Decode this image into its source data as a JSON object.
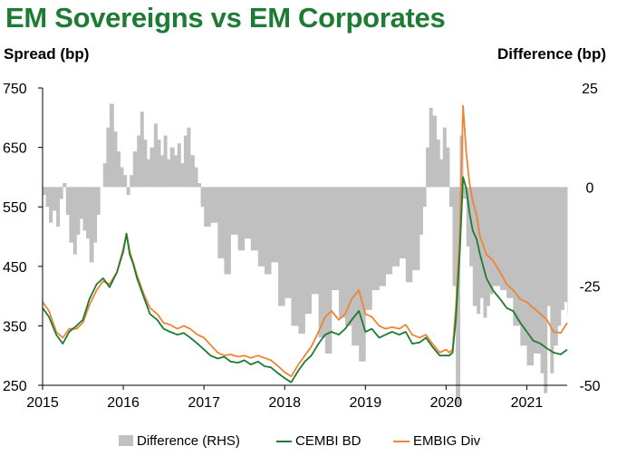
{
  "title": "EM Sovereigns vs EM Corporates",
  "left_axis_label": "Spread (bp)",
  "right_axis_label": "Difference (bp)",
  "chart_data": {
    "type": "line",
    "title": "EM Sovereigns vs EM Corporates",
    "xlabel": "",
    "ylabel": "Spread (bp)",
    "y2label": "Difference (bp)",
    "xlim": [
      2015.0,
      2021.5
    ],
    "ylim": [
      250,
      750
    ],
    "y2lim": [
      -50,
      25
    ],
    "x_ticks": [
      "2015",
      "2016",
      "2017",
      "2018",
      "2019",
      "2020",
      "2021"
    ],
    "y_ticks": [
      "250",
      "350",
      "450",
      "550",
      "650",
      "750"
    ],
    "y2_ticks": [
      "-50",
      "-25",
      "0",
      "25"
    ],
    "grid": false,
    "legend_position": "bottom",
    "colors": {
      "difference": "#c0c0c0",
      "cembi": "#1f7a33",
      "embig": "#ee8434",
      "title": "#1e7b34"
    },
    "series": [
      {
        "name": "Difference (RHS)",
        "axis": "right",
        "style": "area",
        "x": [
          2015.0,
          2015.04,
          2015.08,
          2015.12,
          2015.17,
          2015.21,
          2015.25,
          2015.29,
          2015.33,
          2015.38,
          2015.42,
          2015.46,
          2015.5,
          2015.54,
          2015.58,
          2015.63,
          2015.67,
          2015.71,
          2015.75,
          2015.79,
          2015.83,
          2015.88,
          2015.92,
          2015.96,
          2016.0,
          2016.04,
          2016.08,
          2016.12,
          2016.17,
          2016.21,
          2016.25,
          2016.29,
          2016.33,
          2016.38,
          2016.42,
          2016.46,
          2016.5,
          2016.54,
          2016.58,
          2016.63,
          2016.67,
          2016.71,
          2016.75,
          2016.79,
          2016.83,
          2016.88,
          2016.92,
          2016.96,
          2017.0,
          2017.08,
          2017.17,
          2017.25,
          2017.33,
          2017.42,
          2017.5,
          2017.58,
          2017.67,
          2017.75,
          2017.83,
          2017.92,
          2018.0,
          2018.08,
          2018.17,
          2018.25,
          2018.33,
          2018.42,
          2018.5,
          2018.58,
          2018.67,
          2018.75,
          2018.83,
          2018.92,
          2019.0,
          2019.08,
          2019.17,
          2019.25,
          2019.33,
          2019.42,
          2019.5,
          2019.58,
          2019.67,
          2019.71,
          2019.75,
          2019.79,
          2019.83,
          2019.88,
          2019.92,
          2019.96,
          2020.0,
          2020.04,
          2020.08,
          2020.12,
          2020.17,
          2020.21,
          2020.25,
          2020.29,
          2020.33,
          2020.38,
          2020.42,
          2020.46,
          2020.5,
          2020.54,
          2020.58,
          2020.67,
          2020.75,
          2020.83,
          2020.92,
          2021.0,
          2021.08,
          2021.17,
          2021.21,
          2021.25,
          2021.29,
          2021.33,
          2021.38,
          2021.42,
          2021.46,
          2021.5
        ],
        "values": [
          -2,
          -5,
          -9,
          -6,
          -10,
          -3,
          1,
          -7,
          -14,
          -17,
          -12,
          -8,
          -11,
          -13,
          -19,
          -14,
          -7,
          0,
          6,
          15,
          21,
          14,
          9,
          5,
          3,
          -2,
          3,
          9,
          13,
          19,
          12,
          7,
          10,
          16,
          12,
          8,
          13,
          7,
          10,
          8,
          11,
          6,
          13,
          15,
          8,
          5,
          1,
          -5,
          -10,
          -9,
          -18,
          -22,
          -12,
          -16,
          -13,
          -16,
          -20,
          -22,
          -19,
          -30,
          -28,
          -35,
          -37,
          -32,
          -27,
          -38,
          -42,
          -26,
          -33,
          -35,
          -40,
          -44,
          -31,
          -26,
          -25,
          -22,
          -20,
          -18,
          -24,
          -21,
          -12,
          -5,
          10,
          20,
          18,
          12,
          7,
          15,
          10,
          -5,
          -25,
          -55,
          13,
          -3,
          -15,
          -20,
          -30,
          -32,
          -28,
          -33,
          -30,
          -27,
          -25,
          -26,
          -28,
          -35,
          -40,
          -45,
          -42,
          -47,
          -52,
          -30,
          -47,
          -40,
          -35,
          -31,
          -29,
          -32
        ]
      },
      {
        "name": "CEMBI BD",
        "axis": "left",
        "style": "line",
        "x": [
          2015.0,
          2015.08,
          2015.17,
          2015.25,
          2015.33,
          2015.42,
          2015.5,
          2015.58,
          2015.67,
          2015.75,
          2015.83,
          2015.92,
          2016.0,
          2016.04,
          2016.08,
          2016.12,
          2016.17,
          2016.25,
          2016.33,
          2016.42,
          2016.5,
          2016.58,
          2016.67,
          2016.75,
          2016.83,
          2016.92,
          2017.0,
          2017.08,
          2017.17,
          2017.25,
          2017.33,
          2017.42,
          2017.5,
          2017.58,
          2017.67,
          2017.75,
          2017.83,
          2017.92,
          2018.0,
          2018.08,
          2018.17,
          2018.25,
          2018.33,
          2018.42,
          2018.5,
          2018.58,
          2018.67,
          2018.75,
          2018.83,
          2018.92,
          2019.0,
          2019.08,
          2019.17,
          2019.25,
          2019.33,
          2019.42,
          2019.5,
          2019.58,
          2019.67,
          2019.75,
          2019.83,
          2019.92,
          2020.0,
          2020.04,
          2020.08,
          2020.12,
          2020.17,
          2020.21,
          2020.25,
          2020.29,
          2020.33,
          2020.38,
          2020.42,
          2020.5,
          2020.58,
          2020.67,
          2020.75,
          2020.83,
          2020.92,
          2021.0,
          2021.08,
          2021.17,
          2021.25,
          2021.33,
          2021.42,
          2021.5
        ],
        "values": [
          380,
          365,
          335,
          320,
          340,
          350,
          360,
          395,
          420,
          430,
          415,
          440,
          475,
          505,
          470,
          455,
          430,
          400,
          370,
          360,
          345,
          340,
          335,
          338,
          330,
          320,
          310,
          300,
          295,
          298,
          290,
          288,
          292,
          285,
          290,
          282,
          280,
          270,
          262,
          255,
          275,
          290,
          300,
          320,
          335,
          340,
          335,
          345,
          360,
          375,
          340,
          345,
          330,
          335,
          340,
          335,
          340,
          320,
          322,
          330,
          315,
          300,
          300,
          300,
          305,
          360,
          475,
          600,
          580,
          540,
          510,
          495,
          470,
          430,
          410,
          395,
          380,
          375,
          355,
          340,
          325,
          320,
          312,
          305,
          302,
          310
        ]
      },
      {
        "name": "EMBIG Div",
        "axis": "left",
        "style": "line",
        "x": [
          2015.0,
          2015.08,
          2015.17,
          2015.25,
          2015.33,
          2015.42,
          2015.5,
          2015.58,
          2015.67,
          2015.75,
          2015.83,
          2015.92,
          2016.0,
          2016.04,
          2016.08,
          2016.12,
          2016.17,
          2016.25,
          2016.33,
          2016.42,
          2016.5,
          2016.58,
          2016.67,
          2016.75,
          2016.83,
          2016.92,
          2017.0,
          2017.08,
          2017.17,
          2017.25,
          2017.33,
          2017.42,
          2017.5,
          2017.58,
          2017.67,
          2017.75,
          2017.83,
          2017.92,
          2018.0,
          2018.08,
          2018.17,
          2018.25,
          2018.33,
          2018.42,
          2018.5,
          2018.58,
          2018.67,
          2018.75,
          2018.83,
          2018.92,
          2019.0,
          2019.08,
          2019.17,
          2019.25,
          2019.33,
          2019.42,
          2019.5,
          2019.58,
          2019.67,
          2019.75,
          2019.83,
          2019.92,
          2020.0,
          2020.04,
          2020.08,
          2020.12,
          2020.17,
          2020.21,
          2020.25,
          2020.29,
          2020.33,
          2020.38,
          2020.42,
          2020.5,
          2020.58,
          2020.67,
          2020.75,
          2020.83,
          2020.92,
          2021.0,
          2021.08,
          2021.17,
          2021.25,
          2021.33,
          2021.42,
          2021.5
        ],
        "values": [
          390,
          375,
          340,
          330,
          345,
          345,
          355,
          385,
          410,
          425,
          420,
          440,
          480,
          505,
          475,
          458,
          435,
          405,
          380,
          370,
          355,
          352,
          345,
          350,
          345,
          335,
          330,
          318,
          305,
          300,
          302,
          298,
          300,
          296,
          300,
          296,
          292,
          282,
          272,
          265,
          285,
          300,
          315,
          340,
          365,
          375,
          360,
          370,
          395,
          410,
          370,
          365,
          350,
          345,
          348,
          345,
          352,
          335,
          330,
          335,
          320,
          305,
          310,
          305,
          310,
          380,
          505,
          720,
          640,
          590,
          560,
          535,
          500,
          470,
          460,
          440,
          420,
          410,
          395,
          390,
          380,
          370,
          360,
          340,
          338,
          355
        ]
      }
    ]
  }
}
